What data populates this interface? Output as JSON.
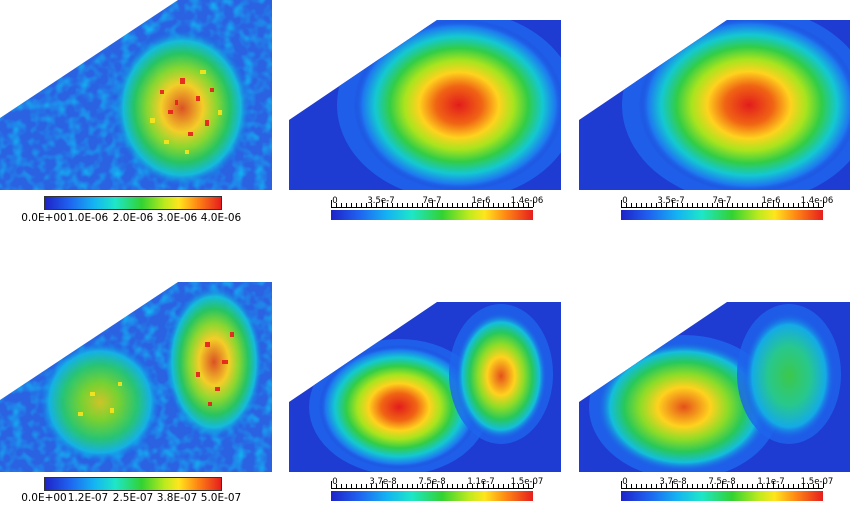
{
  "rows": [
    {
      "noisy_colorbar": {
        "ticks": [
          "0.0E+00",
          "1.0E-06",
          "2.0E-06",
          "3.0E-06",
          "4.0E-06"
        ]
      },
      "smooth1_colorbar": {
        "ticks": [
          "0",
          "3.5e-7",
          "7e-7",
          "1e-6",
          "1.4e-06"
        ]
      },
      "smooth2_colorbar": {
        "ticks": [
          "0",
          "3.5e-7",
          "7e-7",
          "1e-6",
          "1.4e-06"
        ]
      }
    },
    {
      "noisy_colorbar": {
        "ticks": [
          "0.0E+00",
          "1.2E-07",
          "2.5E-07",
          "3.8E-07",
          "5.0E-07"
        ]
      },
      "smooth1_colorbar": {
        "ticks": [
          "0",
          "3.7e-8",
          "7.5e-8",
          "1.1e-7",
          "1.5e-07"
        ]
      },
      "smooth2_colorbar": {
        "ticks": [
          "0",
          "3.7e-8",
          "7.5e-8",
          "1.1e-7",
          "1.5e-07"
        ]
      }
    }
  ],
  "colors": {
    "low": "#1e23c8",
    "mid_low": "#14b4f2",
    "mid": "#32d232",
    "mid_high": "#ffe61e",
    "high": "#e61e1e"
  }
}
